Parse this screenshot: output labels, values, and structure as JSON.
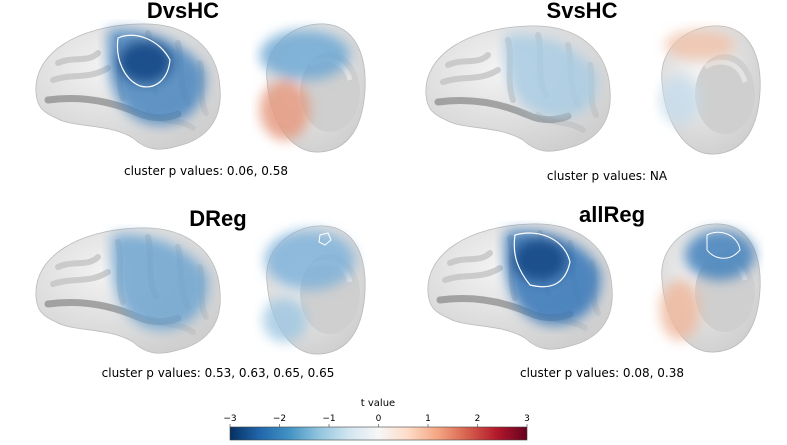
{
  "panels": [
    {
      "title": "DvsHC",
      "note": "cluster p values: 0.06, 0.58"
    },
    {
      "title": "SvsHC",
      "note": "cluster p values: NA"
    },
    {
      "title": "DReg",
      "note": "cluster p values: 0.53, 0.63, 0.65, 0.65"
    },
    {
      "title": "allReg",
      "note": "cluster p values: 0.08, 0.38"
    }
  ],
  "colorbar": {
    "label": "t value",
    "ticks": [
      "−3",
      "−2",
      "−1",
      "0",
      "1",
      "2",
      "3"
    ]
  }
}
